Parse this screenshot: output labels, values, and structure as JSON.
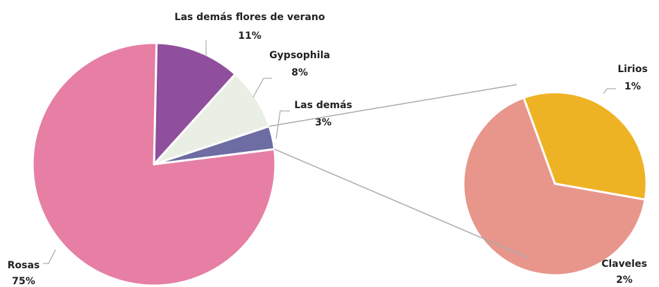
{
  "chart_data": {
    "type": "pie-of-pie",
    "categories": [
      "Rosas",
      "Las demás flores de verano",
      "Gypsophila",
      "Las demás"
    ],
    "values": [
      75,
      11,
      8,
      3
    ],
    "value_labels": [
      "75%",
      "11%",
      "8%",
      "3%"
    ],
    "colors": [
      "#e67fa3",
      "#8f4f9c",
      "#e9efe4",
      "#6d6ca3"
    ],
    "secondary": {
      "categories": [
        "Lirios",
        "Claveles"
      ],
      "values": [
        1,
        2
      ],
      "value_labels": [
        "1%",
        "2%"
      ],
      "colors": [
        "#eeb324",
        "#e8968c"
      ]
    }
  }
}
